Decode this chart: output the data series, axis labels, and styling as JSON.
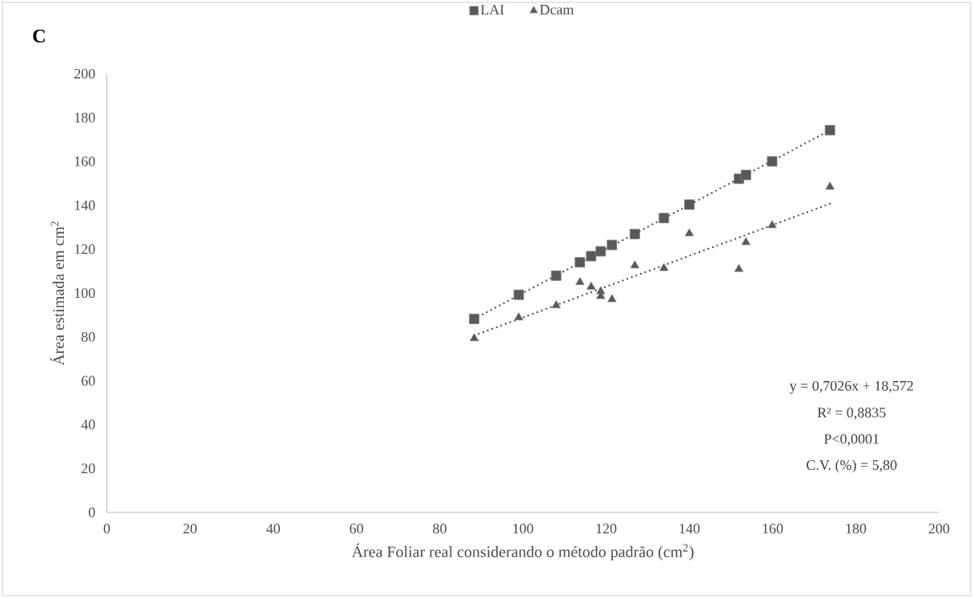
{
  "chart_data": {
    "type": "scatter",
    "title": "C",
    "xlabel": "Área Foliar real considerando o método padrão (cm$^{2}$)",
    "ylabel": "Área estimada em cm$^{2}$",
    "xlim": [
      0,
      200
    ],
    "ylim": [
      0,
      200
    ],
    "xticks": [
      0,
      20,
      40,
      60,
      80,
      100,
      120,
      140,
      160,
      180,
      200
    ],
    "yticks": [
      0,
      20,
      40,
      60,
      80,
      100,
      120,
      140,
      160,
      180,
      200
    ],
    "grid": false,
    "legend": "top",
    "series": [
      {
        "name": "LAI",
        "color": "#595959",
        "marker": "square",
        "x": [
          88.3,
          99.0,
          108.0,
          113.7,
          116.4,
          118.7,
          121.4,
          126.9,
          133.9,
          140.0,
          151.9,
          153.6,
          159.9,
          173.8
        ],
        "values": [
          88.2,
          99.2,
          107.9,
          114.0,
          116.8,
          119.0,
          121.9,
          126.9,
          134.2,
          140.3,
          152.1,
          153.8,
          160.0,
          174.2
        ]
      },
      {
        "name": "Dcam",
        "color": "#595959",
        "marker": "triangle",
        "x": [
          88.3,
          99.0,
          108.0,
          113.7,
          116.4,
          118.7,
          118.7,
          121.4,
          126.9,
          133.9,
          140.0,
          151.9,
          153.6,
          159.9,
          173.8
        ],
        "values": [
          79.3,
          88.8,
          94.3,
          104.9,
          102.8,
          100.7,
          98.5,
          97.1,
          112.5,
          111.3,
          127.1,
          110.9,
          123.1,
          130.8,
          148.4
        ]
      },
      {
        "type": "line",
        "color": "#595959",
        "line_style": "dotted",
        "marker": "none",
        "x": [
          88.3,
          173.8
        ],
        "values": [
          88.2,
          174.2
        ]
      },
      {
        "type": "line",
        "color": "#595959",
        "line_style": "dotted",
        "marker": "none",
        "x": [
          88.3,
          173.8
        ],
        "values": [
          80.6,
          140.7
        ]
      }
    ],
    "annotations": [
      "y = 0,7026x + 18,572",
      "R² = 0,8835",
      "P<0,0001",
      "C.V. (%) = 5,80"
    ]
  }
}
